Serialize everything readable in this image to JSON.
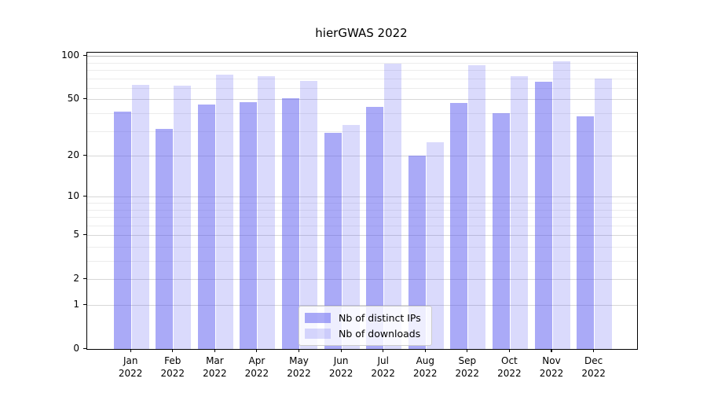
{
  "chart_data": {
    "type": "bar",
    "title": "hierGWAS 2022",
    "categories": [
      {
        "month": "Jan",
        "year": "2022"
      },
      {
        "month": "Feb",
        "year": "2022"
      },
      {
        "month": "Mar",
        "year": "2022"
      },
      {
        "month": "Apr",
        "year": "2022"
      },
      {
        "month": "May",
        "year": "2022"
      },
      {
        "month": "Jun",
        "year": "2022"
      },
      {
        "month": "Jul",
        "year": "2022"
      },
      {
        "month": "Aug",
        "year": "2022"
      },
      {
        "month": "Sep",
        "year": "2022"
      },
      {
        "month": "Oct",
        "year": "2022"
      },
      {
        "month": "Nov",
        "year": "2022"
      },
      {
        "month": "Dec",
        "year": "2022"
      }
    ],
    "series": [
      {
        "name": "Nb of distinct IPs",
        "color": "rgba(86,86,240,0.50)",
        "values": [
          41,
          31,
          46,
          48,
          51,
          29,
          44,
          20,
          47,
          40,
          66,
          38
        ]
      },
      {
        "name": "Nb of downloads",
        "color": "rgba(86,86,240,0.22)",
        "values": [
          63,
          62,
          74,
          72,
          67,
          33,
          88,
          25,
          86,
          72,
          92,
          70
        ]
      }
    ],
    "yscale": "log1p",
    "ylim": [
      0,
      105
    ],
    "ytick_values": [
      100,
      50,
      20,
      10,
      5,
      2,
      1,
      0
    ],
    "ytick_labels": [
      "100",
      "50",
      "20",
      "10",
      "5",
      "2",
      "1",
      "0"
    ],
    "minor_gridlines": [
      90,
      80,
      70,
      60,
      40,
      30,
      9,
      8,
      7,
      6,
      4,
      3
    ],
    "grid": "both",
    "legend_position": "lower center",
    "xlabel": "",
    "ylabel": ""
  }
}
